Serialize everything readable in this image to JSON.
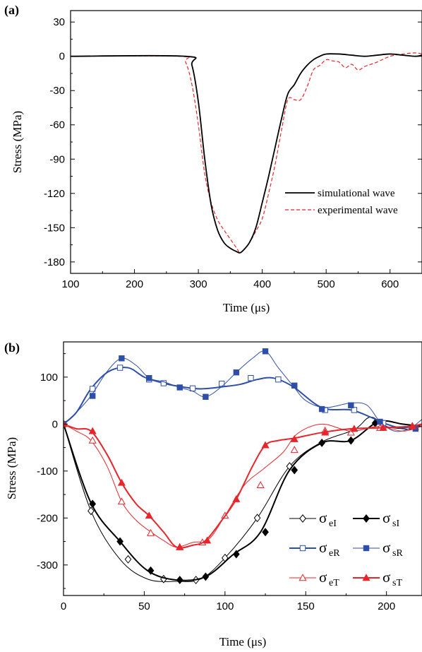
{
  "chart_data": [
    {
      "panel": "(a)",
      "type": "line",
      "xlabel": "Time (μs)",
      "ylabel": "Stress (MPa)",
      "xlim": [
        100,
        650
      ],
      "ylim": [
        -190,
        40
      ],
      "xticks": [
        100,
        200,
        300,
        400,
        500,
        600
      ],
      "yticks": [
        30,
        0,
        -30,
        -60,
        -90,
        -120,
        -150,
        -180
      ],
      "legend_position": "lower-right",
      "series": [
        {
          "name": "simulational wave",
          "color": "#000000",
          "style": "solid",
          "x": [
            100,
            280,
            290,
            300,
            310,
            320,
            330,
            340,
            350,
            360,
            365,
            370,
            380,
            390,
            400,
            410,
            420,
            430,
            440,
            450,
            460,
            470,
            480,
            490,
            500,
            520,
            540,
            560,
            580,
            600,
            620,
            640,
            650
          ],
          "y": [
            0,
            0,
            -8,
            -40,
            -90,
            -130,
            -152,
            -163,
            -168,
            -171,
            -172,
            -170,
            -163,
            -150,
            -128,
            -105,
            -80,
            -55,
            -33,
            -25,
            -15,
            -8,
            -3,
            0,
            2,
            2,
            1,
            0,
            1,
            2,
            1,
            0,
            1
          ]
        },
        {
          "name": "experimental wave",
          "color": "#e8252a",
          "style": "dashed",
          "x": [
            100,
            270,
            280,
            290,
            300,
            310,
            320,
            330,
            340,
            350,
            360,
            365,
            370,
            380,
            390,
            400,
            410,
            420,
            430,
            440,
            450,
            460,
            470,
            480,
            490,
            500,
            510,
            520,
            530,
            540,
            550,
            560,
            570,
            580,
            600,
            620,
            640,
            650
          ],
          "y": [
            0,
            0,
            -5,
            -25,
            -60,
            -103,
            -128,
            -143,
            -152,
            -160,
            -168,
            -172,
            -170,
            -163,
            -153,
            -142,
            -120,
            -95,
            -65,
            -38,
            -38,
            -38,
            -27,
            -12,
            -8,
            -3,
            -4,
            -5,
            -10,
            -7,
            -12,
            -9,
            -7,
            -5,
            0,
            2,
            3,
            2
          ]
        }
      ]
    },
    {
      "panel": "(b)",
      "type": "line",
      "xlabel": "Time (μs)",
      "ylabel": "Stress (MPa)",
      "xlim": [
        0,
        222
      ],
      "ylim": [
        -365,
        175
      ],
      "xticks": [
        0,
        50,
        100,
        150,
        200
      ],
      "yticks": [
        100,
        0,
        -100,
        -200,
        -300
      ],
      "legend_position": "lower-right",
      "series": [
        {
          "name": "σeI",
          "label_main": "σ",
          "label_sub": "eI",
          "color": "#000000",
          "marker": "diamond-open",
          "line_width": 1,
          "x": [
            0,
            17,
            35,
            52,
            70,
            85,
            100,
            120,
            140,
            160,
            180,
            190,
            200,
            210,
            220
          ],
          "y": [
            0,
            -185,
            -288,
            -330,
            -335,
            -330,
            -285,
            -200,
            -90,
            -38,
            -12,
            15,
            -5,
            -10,
            -12
          ],
          "marker_x": [
            0,
            17,
            40,
            62,
            82,
            100,
            120,
            140
          ],
          "marker_y": [
            0,
            -185,
            -288,
            -330,
            -332,
            -285,
            -200,
            -90
          ]
        },
        {
          "name": "σsI",
          "label_main": "σ",
          "label_sub": "sI",
          "color": "#000000",
          "marker": "diamond-filled",
          "line_width": 2,
          "x": [
            0,
            17,
            35,
            52,
            70,
            88,
            105,
            122,
            140,
            160,
            178,
            195,
            210,
            222
          ],
          "y": [
            0,
            -168,
            -250,
            -312,
            -332,
            -325,
            -278,
            -230,
            -98,
            -40,
            -35,
            5,
            0,
            -5
          ],
          "marker_x": [
            0,
            18,
            35,
            54,
            72,
            88,
            107,
            125,
            143,
            160,
            178,
            193
          ],
          "marker_y": [
            0,
            -170,
            -250,
            -312,
            -332,
            -325,
            -277,
            -230,
            -98,
            -40,
            -35,
            2
          ]
        },
        {
          "name": "σeR",
          "label_main": "σ",
          "label_sub": "eR",
          "color": "#2e4fa8",
          "marker": "square-open",
          "line_width": 2,
          "x": [
            0,
            8,
            17,
            28,
            40,
            50,
            62,
            72,
            85,
            100,
            110,
            120,
            130,
            142,
            160,
            178,
            190,
            200,
            210,
            222
          ],
          "y": [
            0,
            25,
            75,
            112,
            120,
            100,
            87,
            80,
            75,
            80,
            85,
            95,
            98,
            80,
            35,
            30,
            15,
            0,
            -8,
            0
          ],
          "marker_x": [
            0,
            18,
            35,
            53,
            62,
            80,
            98,
            116,
            133,
            162,
            180,
            198
          ],
          "marker_y": [
            0,
            75,
            120,
            95,
            87,
            76,
            86,
            98,
            95,
            30,
            30,
            2
          ]
        },
        {
          "name": "σsR",
          "label_main": "σ",
          "label_sub": "sR",
          "color": "#2e4fa8",
          "marker": "square-filled",
          "line_width": 1,
          "x": [
            0,
            8,
            17,
            27,
            36,
            45,
            53,
            62,
            72,
            80,
            88,
            98,
            107,
            117,
            125,
            133,
            142,
            150,
            162,
            178,
            188,
            196,
            205,
            214,
            222
          ],
          "y": [
            0,
            25,
            60,
            112,
            140,
            125,
            98,
            90,
            78,
            70,
            58,
            80,
            110,
            140,
            155,
            120,
            82,
            50,
            35,
            45,
            40,
            5,
            -15,
            -10,
            10
          ],
          "marker_x": [
            0,
            18,
            36,
            53,
            72,
            88,
            107,
            125,
            143,
            160,
            178,
            196,
            218
          ],
          "marker_y": [
            0,
            60,
            140,
            98,
            78,
            58,
            110,
            155,
            82,
            32,
            40,
            5,
            -10
          ]
        },
        {
          "name": "σeT",
          "label_main": "σ",
          "label_sub": "eT",
          "color": "#e8252a",
          "marker": "triangle-open",
          "line_width": 1,
          "x": [
            0,
            8,
            17,
            27,
            36,
            45,
            55,
            62,
            70,
            80,
            90,
            100,
            112,
            124,
            136,
            145,
            160,
            178,
            195,
            210,
            222
          ],
          "y": [
            0,
            -15,
            -35,
            -90,
            -165,
            -205,
            -232,
            -248,
            -262,
            -252,
            -245,
            -195,
            -130,
            -95,
            -60,
            -20,
            0,
            -15,
            -5,
            -15,
            -5
          ],
          "marker_x": [
            0,
            18,
            36,
            54,
            72,
            86,
            100,
            122,
            143,
            162,
            178,
            196
          ],
          "marker_y": [
            0,
            -35,
            -165,
            -232,
            -262,
            -252,
            -195,
            -130,
            -55,
            -14,
            -18,
            -8
          ]
        },
        {
          "name": "σsT",
          "label_main": "σ",
          "label_sub": "sT",
          "color": "#e8252a",
          "marker": "triangle-filled",
          "line_width": 2,
          "x": [
            0,
            8,
            17,
            27,
            36,
            45,
            53,
            62,
            70,
            80,
            88,
            98,
            107,
            117,
            125,
            133,
            143,
            160,
            178,
            196,
            214,
            222
          ],
          "y": [
            0,
            -10,
            -15,
            -65,
            -125,
            -170,
            -195,
            -230,
            -262,
            -258,
            -248,
            -205,
            -160,
            -90,
            -45,
            -35,
            -30,
            -18,
            -10,
            -8,
            -5,
            0
          ],
          "marker_x": [
            0,
            18,
            36,
            53,
            72,
            89,
            107,
            125,
            143,
            162,
            180,
            198,
            216
          ],
          "marker_y": [
            0,
            -15,
            -125,
            -195,
            -262,
            -248,
            -160,
            -45,
            -32,
            -18,
            -10,
            -8,
            -4
          ]
        }
      ]
    }
  ]
}
